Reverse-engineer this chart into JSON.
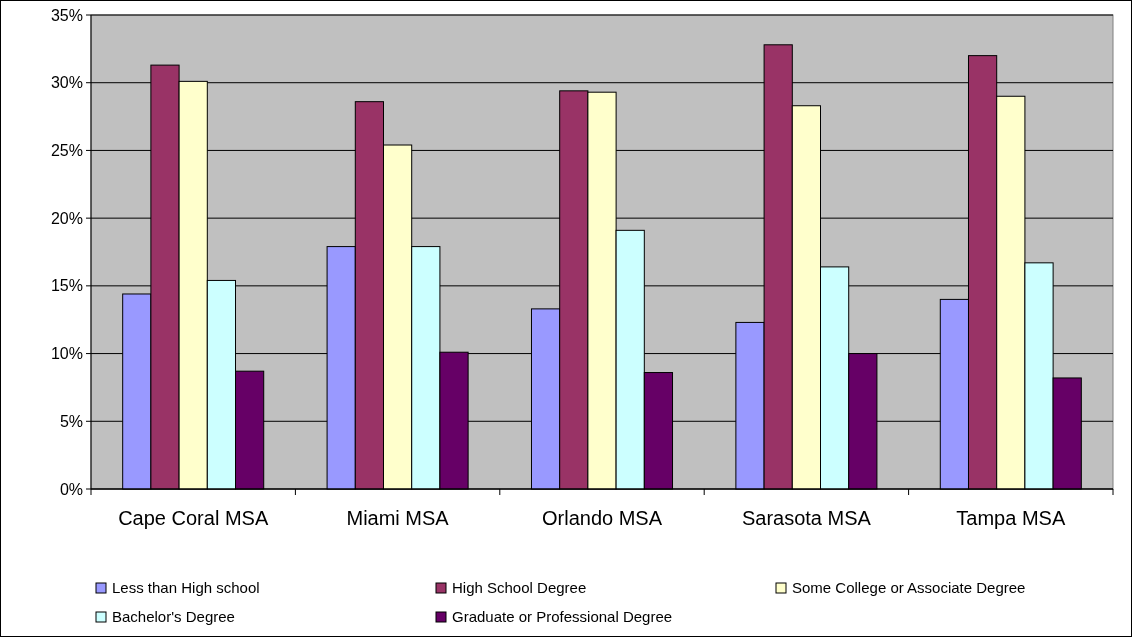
{
  "chart_data": {
    "type": "bar",
    "categories": [
      "Cape Coral MSA",
      "Miami MSA",
      "Orlando MSA",
      "Sarasota MSA",
      "Tampa MSA"
    ],
    "series": [
      {
        "name": "Less than High school",
        "color": "#9999ff",
        "values": [
          14.4,
          17.9,
          13.3,
          12.3,
          14.0
        ]
      },
      {
        "name": "High School Degree",
        "color": "#993366",
        "values": [
          31.3,
          28.6,
          29.4,
          32.8,
          32.0
        ]
      },
      {
        "name": "Some College or Associate Degree",
        "color": "#ffffcc",
        "values": [
          30.1,
          25.4,
          29.3,
          28.3,
          29.0
        ]
      },
      {
        "name": "Bachelor's Degree",
        "color": "#ccffff",
        "values": [
          15.4,
          17.9,
          19.1,
          16.4,
          16.7
        ]
      },
      {
        "name": "Graduate or Professional Degree",
        "color": "#660066",
        "values": [
          8.7,
          10.1,
          8.6,
          10.0,
          8.2
        ]
      }
    ],
    "ylim": [
      0,
      35
    ],
    "yticks": [
      {
        "value": 0,
        "label": "0%"
      },
      {
        "value": 5,
        "label": "5%"
      },
      {
        "value": 10,
        "label": "10%"
      },
      {
        "value": 15,
        "label": "15%"
      },
      {
        "value": 20,
        "label": "20%"
      },
      {
        "value": 25,
        "label": "25%"
      },
      {
        "value": 30,
        "label": "30%"
      },
      {
        "value": 35,
        "label": "35%"
      }
    ],
    "grid": "y",
    "legend": "bottom"
  }
}
